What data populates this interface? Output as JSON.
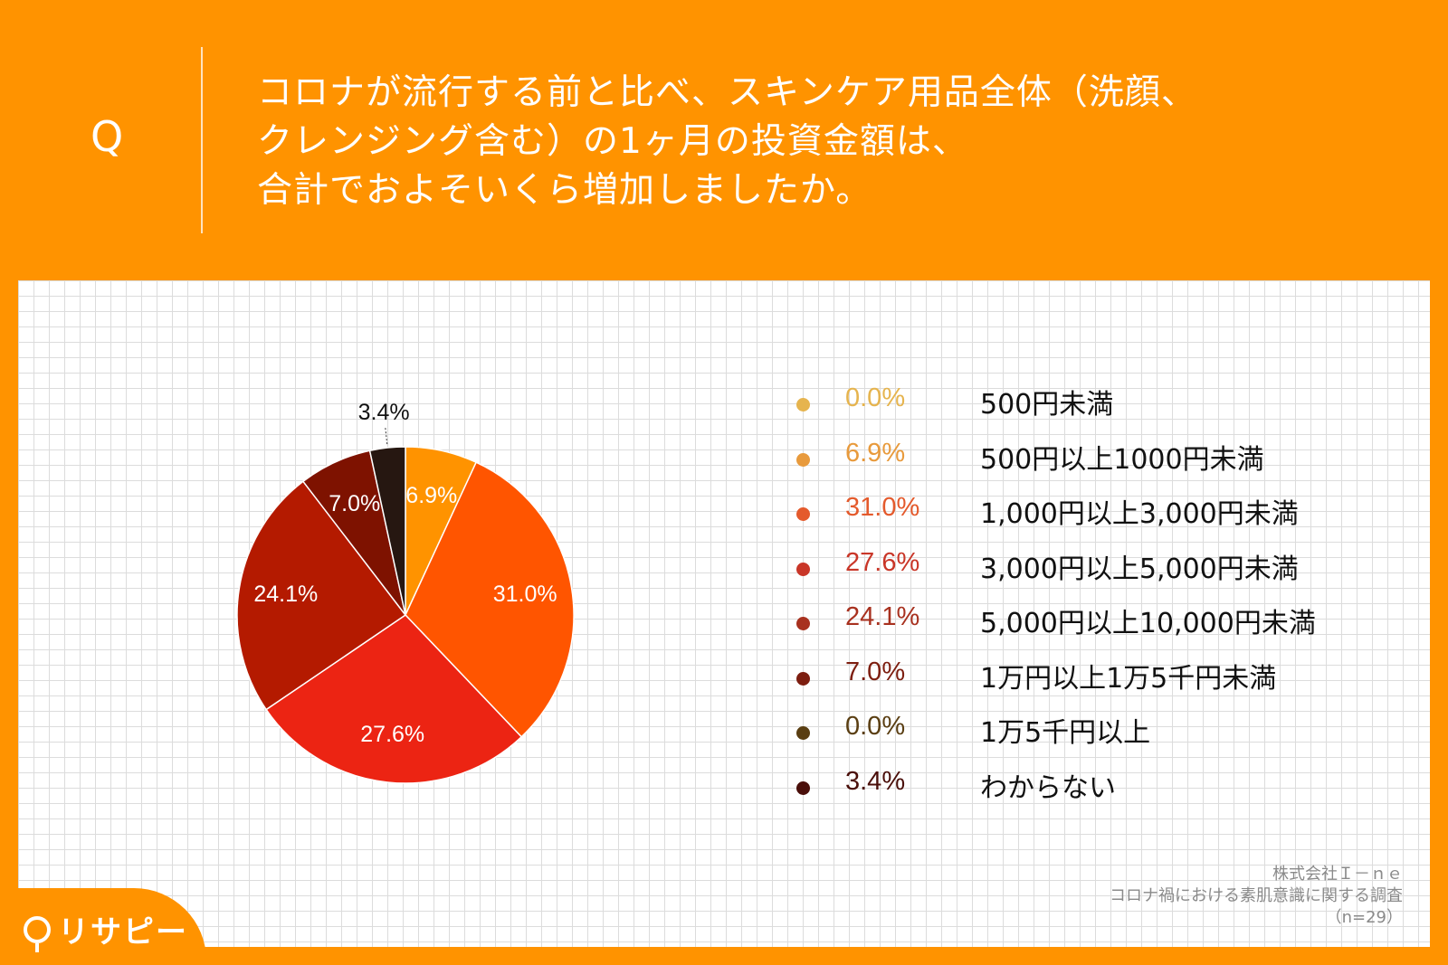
{
  "header": {
    "q_label": "Q",
    "question_lines": [
      "コロナが流行する前と比べ、スキンケア用品全体（洗顔、",
      "クレンジング含む）の1ヶ月の投資金額は、",
      "合計でおよそいくら増加しましたか。"
    ]
  },
  "chart_data": {
    "type": "pie",
    "title": "コロナが流行する前と比べ、スキンケア用品全体（洗顔、クレンジング含む）の1ヶ月の投資金額は、合計でおよそいくら増加しましたか。",
    "slices": [
      {
        "label": "500円未満",
        "value": 0.0,
        "pct_text": "0.0%",
        "color": "#f2b53b",
        "legend_color": "#e6b44e"
      },
      {
        "label": "500円以上1000円未満",
        "value": 6.9,
        "pct_text": "6.9%",
        "color": "#ff9300",
        "legend_color": "#e89a3c"
      },
      {
        "label": "1,000円以上3,000円未満",
        "value": 31.0,
        "pct_text": "31.0%",
        "color": "#ff5500",
        "legend_color": "#e45a2c"
      },
      {
        "label": "3,000円以上5,000円未満",
        "value": 27.6,
        "pct_text": "27.6%",
        "color": "#ec2413",
        "legend_color": "#c93628"
      },
      {
        "label": "5,000円以上10,000円未満",
        "value": 24.1,
        "pct_text": "24.1%",
        "color": "#b41a00",
        "legend_color": "#a8311f"
      },
      {
        "label": "1万円以上1万5千円未満",
        "value": 7.0,
        "pct_text": "7.0%",
        "color": "#7e1200",
        "legend_color": "#7d1e10"
      },
      {
        "label": "1万5千円以上",
        "value": 0.0,
        "pct_text": "0.0%",
        "color": "#5a3c0a",
        "legend_color": "#5a3e12"
      },
      {
        "label": "わからない",
        "value": 3.4,
        "pct_text": "3.4%",
        "color": "#261711",
        "legend_color": "#4a0f0a"
      }
    ]
  },
  "source": {
    "company": "株式会社Ｉ－ｎｅ",
    "survey": "コロナ禍における素肌意識に関する調査",
    "n": "（n=29）"
  },
  "logo": {
    "text": "リサピー",
    "accent_color": "#ff9300"
  }
}
